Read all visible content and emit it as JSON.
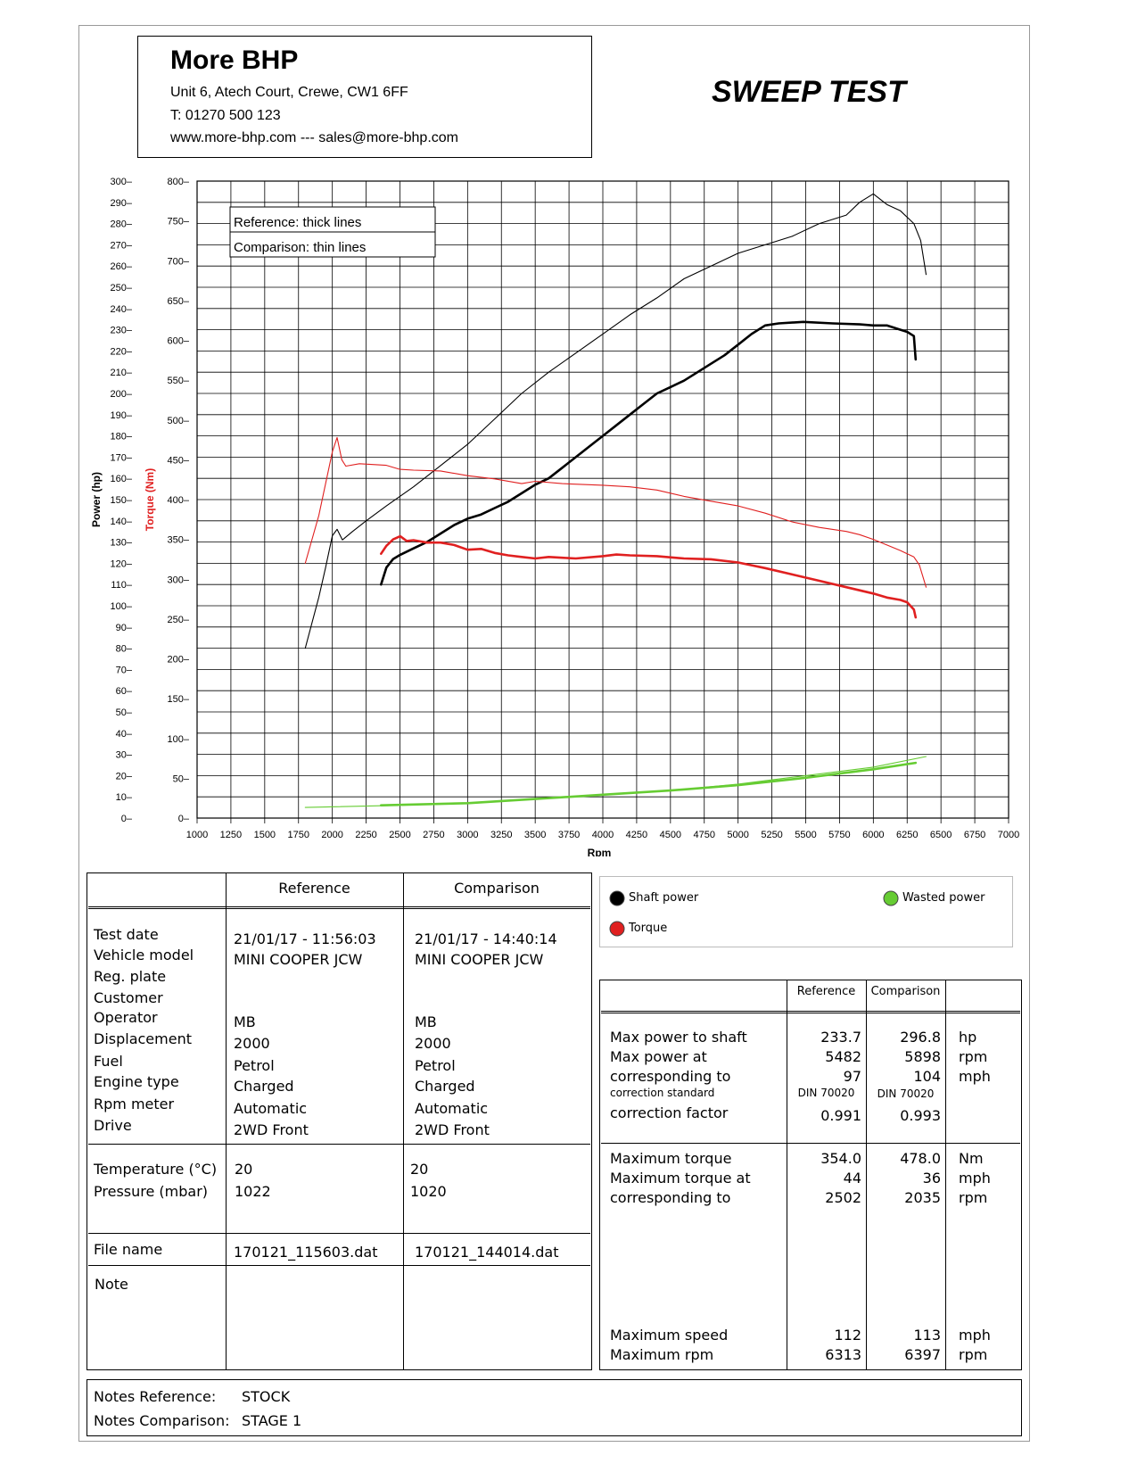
{
  "header": {
    "company_name": "More BHP",
    "address": "Unit 6, Atech Court, Crewe, CW1 6FF",
    "phone": "T: 01270 500 123",
    "web": "www.more-bhp.com --- sales@more-bhp.com",
    "report_title": "SWEEP TEST"
  },
  "chart_data": {
    "type": "line",
    "xlabel": "Rpm",
    "ylabel_power": "Power (hp)",
    "ylabel_torque": "Torque (Nm)",
    "xlim": [
      1000,
      7000
    ],
    "ylim_power": [
      0,
      300
    ],
    "ylim_torque": [
      0,
      800
    ],
    "x_ticks": [
      "1000",
      "1250",
      "1500",
      "1750",
      "2000",
      "2250",
      "2500",
      "2750",
      "3000",
      "3250",
      "3500",
      "3750",
      "4000",
      "4250",
      "4500",
      "4750",
      "5000",
      "5250",
      "5500",
      "5750",
      "6000",
      "6250",
      "6500",
      "6750",
      "7000"
    ],
    "power_ticks": [
      "300",
      "290",
      "280",
      "270",
      "260",
      "250",
      "240",
      "230",
      "220",
      "210",
      "200",
      "190",
      "180",
      "170",
      "160",
      "150",
      "140",
      "130",
      "120",
      "110",
      "100",
      "90",
      "80",
      "70",
      "60",
      "50",
      "40",
      "30",
      "20",
      "10",
      "0"
    ],
    "torque_ticks": [
      "800",
      "750",
      "700",
      "650",
      "600",
      "550",
      "500",
      "450",
      "400",
      "350",
      "300",
      "250",
      "200",
      "150",
      "100",
      "50",
      "0"
    ],
    "grid": true,
    "legend_box": [
      "Reference: thick lines",
      "Comparison: thin lines"
    ],
    "series": [
      {
        "name": "Shaft power",
        "line": "thin",
        "axis": "power",
        "color": "#000000",
        "x": [
          1800,
          1850,
          1900,
          1950,
          2000,
          2035,
          2075,
          2150,
          2250,
          2400,
          2600,
          2800,
          3000,
          3200,
          3400,
          3600,
          3800,
          4000,
          4200,
          4400,
          4600,
          4800,
          5000,
          5200,
          5400,
          5600,
          5800,
          5898,
          6000,
          6100,
          6200,
          6300,
          6350,
          6390
        ],
        "y": [
          80,
          92,
          104,
          118,
          133,
          136,
          131,
          135,
          140,
          147,
          156,
          166,
          176,
          188,
          200,
          210,
          219,
          228,
          237,
          245,
          254,
          260,
          266,
          270,
          274,
          280,
          284,
          290,
          294,
          289,
          286,
          280,
          272,
          256
        ]
      },
      {
        "name": "Shaft power",
        "line": "thick",
        "axis": "power",
        "color": "#000000",
        "x": [
          2360,
          2400,
          2450,
          2502,
          2600,
          2700,
          2800,
          2900,
          3000,
          3100,
          3200,
          3300,
          3400,
          3500,
          3600,
          3700,
          3800,
          3900,
          4000,
          4100,
          4200,
          4300,
          4400,
          4500,
          4600,
          4700,
          4800,
          4900,
          5000,
          5100,
          5200,
          5300,
          5482,
          5700,
          5900,
          6000,
          6100,
          6200,
          6250,
          6300,
          6313
        ],
        "y": [
          110,
          118,
          122,
          124,
          127,
          130,
          134,
          138,
          141,
          143,
          146,
          149,
          153,
          157,
          160,
          165,
          170,
          175,
          180,
          185,
          190,
          195,
          200,
          203,
          206,
          210,
          214,
          218,
          223,
          228,
          232,
          233,
          233.7,
          233,
          232.5,
          232,
          232,
          230,
          229,
          227,
          216
        ]
      },
      {
        "name": "Torque",
        "line": "thin",
        "axis": "torque",
        "color": "#e02020",
        "x": [
          1800,
          1850,
          1900,
          1950,
          2000,
          2035,
          2070,
          2100,
          2200,
          2300,
          2400,
          2500,
          2600,
          2800,
          3000,
          3200,
          3400,
          3500,
          3700,
          4000,
          4200,
          4400,
          4600,
          4800,
          5000,
          5200,
          5400,
          5600,
          5800,
          5898,
          6000,
          6100,
          6200,
          6300,
          6340,
          6390
        ],
        "y": [
          320,
          350,
          380,
          420,
          460,
          478,
          450,
          442,
          445,
          444,
          443,
          438,
          437,
          436,
          430,
          426,
          420,
          423,
          420,
          418,
          416,
          412,
          404,
          398,
          392,
          383,
          372,
          365,
          360,
          356,
          350,
          343,
          336,
          328,
          318,
          290
        ]
      },
      {
        "name": "Torque",
        "line": "thick",
        "axis": "torque",
        "color": "#e02020",
        "x": [
          2360,
          2400,
          2450,
          2502,
          2550,
          2600,
          2700,
          2800,
          2900,
          3000,
          3100,
          3200,
          3300,
          3400,
          3500,
          3600,
          3700,
          3800,
          4000,
          4100,
          4200,
          4400,
          4600,
          4800,
          5000,
          5200,
          5400,
          5600,
          5800,
          6000,
          6100,
          6200,
          6250,
          6300,
          6313
        ],
        "y": [
          332,
          342,
          350,
          354,
          348,
          349,
          346,
          346,
          343,
          337,
          338,
          333,
          330,
          328,
          326,
          328,
          327,
          326,
          329,
          331,
          330,
          329,
          326,
          325,
          321,
          314,
          306,
          298,
          290,
          282,
          277,
          274,
          271,
          262,
          252
        ]
      },
      {
        "name": "Wasted power",
        "line": "thin",
        "axis": "power",
        "color": "#66cc33",
        "x": [
          1800,
          2500,
          3000,
          3500,
          4000,
          4500,
          5000,
          5500,
          6000,
          6390
        ],
        "y": [
          5,
          6,
          7,
          9,
          11,
          13,
          16,
          20,
          24,
          29
        ]
      },
      {
        "name": "Wasted power",
        "line": "thick",
        "axis": "power",
        "color": "#66cc33",
        "x": [
          2360,
          3000,
          3500,
          4000,
          4500,
          5000,
          5500,
          6000,
          6313
        ],
        "y": [
          6,
          7,
          9,
          11,
          13,
          15.5,
          19,
          23,
          26
        ]
      }
    ]
  },
  "legend": {
    "shaft_power": "Shaft power",
    "torque": "Torque",
    "wasted_power": "Wasted power",
    "colors": {
      "shaft": "#000000",
      "torque": "#e02020",
      "wasted": "#66cc33"
    }
  },
  "info_table": {
    "col_reference": "Reference",
    "col_comparison": "Comparison",
    "labels": [
      "Test date",
      "Vehicle model",
      "Reg. plate",
      "Customer",
      "Operator",
      "Displacement",
      "Fuel",
      "Engine type",
      "Rpm meter",
      "Drive"
    ],
    "reference": [
      "21/01/17 - 11:56:03",
      "MINI COOPER JCW",
      "",
      "",
      "MB",
      "2000",
      "Petrol",
      "Charged",
      "Automatic",
      "2WD Front"
    ],
    "comparison": [
      "21/01/17 - 14:40:14",
      "MINI COOPER JCW",
      "",
      "",
      "MB",
      "2000",
      "Petrol",
      "Charged",
      "Automatic",
      "2WD Front"
    ],
    "env_labels": [
      "Temperature (°C)",
      "Pressure (mbar)"
    ],
    "env_reference": [
      "20",
      "1022"
    ],
    "env_comparison": [
      "20",
      "1020"
    ],
    "file_label": "File name",
    "file_reference": "170121_115603.dat",
    "file_comparison": "170121_144014.dat",
    "note_label": "Note"
  },
  "results_table": {
    "col_reference": "Reference",
    "col_comparison": "Comparison",
    "power_rows": [
      {
        "label": "Max power to shaft",
        "ref": "233.7",
        "cmp": "296.8",
        "unit": "hp"
      },
      {
        "label": "Max power at",
        "ref": "5482",
        "cmp": "5898",
        "unit": "rpm"
      },
      {
        "label": "corresponding to",
        "ref": "97",
        "cmp": "104",
        "unit": "mph"
      }
    ],
    "correction_standard_label": "correction standard",
    "correction_standard_ref": "DIN 70020",
    "correction_standard_cmp": "DIN 70020",
    "correction_factor_label": "correction factor",
    "correction_factor_ref": "0.991",
    "correction_factor_cmp": "0.993",
    "torque_rows": [
      {
        "label": "Maximum torque",
        "ref": "354.0",
        "cmp": "478.0",
        "unit": "Nm"
      },
      {
        "label": "Maximum torque at",
        "ref": "44",
        "cmp": "36",
        "unit": "mph"
      },
      {
        "label": "corresponding to",
        "ref": "2502",
        "cmp": "2035",
        "unit": "rpm"
      }
    ],
    "speed_rows": [
      {
        "label": "Maximum speed",
        "ref": "112",
        "cmp": "113",
        "unit": "mph"
      },
      {
        "label": "Maximum rpm",
        "ref": "6313",
        "cmp": "6397",
        "unit": "rpm"
      }
    ]
  },
  "notes": {
    "reference_label": "Notes Reference:",
    "reference_value": "STOCK",
    "comparison_label": "Notes Comparison:",
    "comparison_value": "STAGE 1"
  }
}
